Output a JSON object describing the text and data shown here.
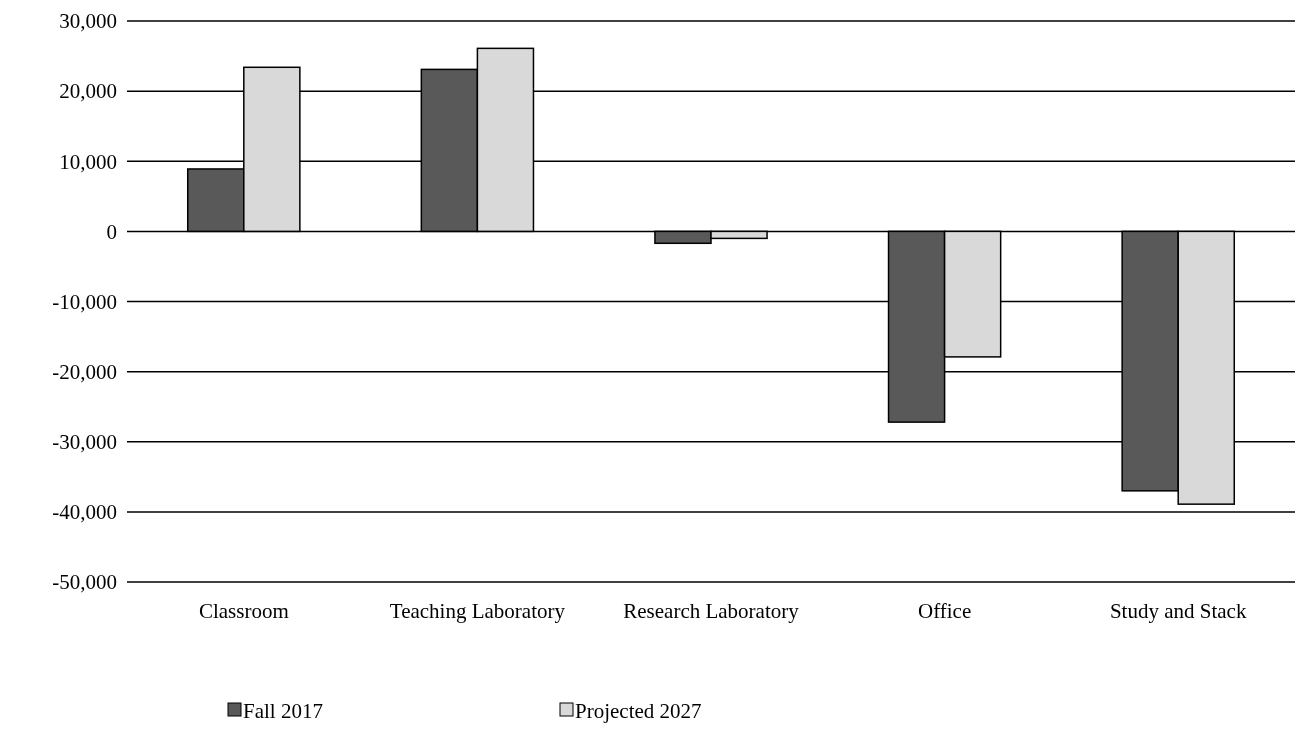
{
  "chart_data": {
    "type": "bar",
    "categories": [
      "Classroom",
      "Teaching Laboratory",
      "Research Laboratory",
      "Office",
      "Study and Stack"
    ],
    "series": [
      {
        "name": "Fall 2017",
        "color": "#595959",
        "values": [
          8900,
          23100,
          -1700,
          -27200,
          -37000
        ]
      },
      {
        "name": "Projected 2027",
        "color": "#d9d9d9",
        "values": [
          23400,
          26100,
          -1000,
          -17900,
          -38900
        ]
      }
    ],
    "ylim": [
      -50000,
      30000
    ],
    "yticks": [
      {
        "value": -50000,
        "label": "-50,000"
      },
      {
        "value": -40000,
        "label": "-40,000"
      },
      {
        "value": -30000,
        "label": "-30,000"
      },
      {
        "value": -20000,
        "label": "-20,000"
      },
      {
        "value": -10000,
        "label": "-10,000"
      },
      0,
      {
        "value": 10000,
        "label": "10,000"
      },
      {
        "value": 20000,
        "label": "20,000"
      },
      {
        "value": 30000,
        "label": "30,000"
      }
    ],
    "grid": "y",
    "legend": "bottom"
  }
}
